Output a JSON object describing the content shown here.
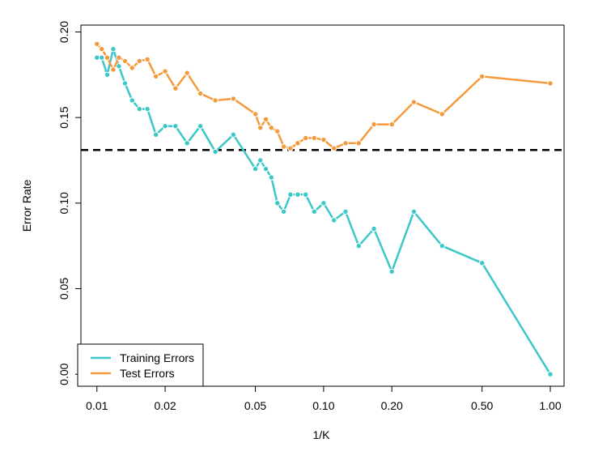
{
  "chart_data": {
    "type": "line",
    "xlabel": "1/K",
    "ylabel": "Error Rate",
    "x_scale": "log",
    "xlim": [
      0.0085,
      1.15
    ],
    "ylim": [
      -0.007,
      0.204
    ],
    "x_ticks": [
      0.01,
      0.02,
      0.05,
      0.1,
      0.2,
      0.5,
      1.0
    ],
    "x_tick_labels": [
      "0.01",
      "0.02",
      "0.05",
      "0.10",
      "0.20",
      "0.50",
      "1.00"
    ],
    "y_ticks": [
      0.0,
      0.05,
      0.1,
      0.15,
      0.2
    ],
    "y_tick_labels": [
      "0.00",
      "0.05",
      "0.10",
      "0.15",
      "0.20"
    ],
    "reference_line": {
      "y": 0.131,
      "style": "dashed",
      "color": "#000000"
    },
    "legend": {
      "position": "bottom-left"
    },
    "series": [
      {
        "name": "Training Errors",
        "color": "#3cc8c8",
        "points": [
          [
            0.01,
            0.185
          ],
          [
            0.0105,
            0.185
          ],
          [
            0.0111,
            0.175
          ],
          [
            0.0118,
            0.19
          ],
          [
            0.0125,
            0.18
          ],
          [
            0.0133,
            0.17
          ],
          [
            0.0143,
            0.16
          ],
          [
            0.0154,
            0.155
          ],
          [
            0.0167,
            0.155
          ],
          [
            0.0182,
            0.14
          ],
          [
            0.02,
            0.145
          ],
          [
            0.0222,
            0.145
          ],
          [
            0.025,
            0.135
          ],
          [
            0.0286,
            0.145
          ],
          [
            0.0333,
            0.13
          ],
          [
            0.04,
            0.14
          ],
          [
            0.05,
            0.12
          ],
          [
            0.0526,
            0.125
          ],
          [
            0.0556,
            0.12
          ],
          [
            0.0588,
            0.115
          ],
          [
            0.0625,
            0.1
          ],
          [
            0.0667,
            0.095
          ],
          [
            0.0714,
            0.105
          ],
          [
            0.0769,
            0.105
          ],
          [
            0.0833,
            0.105
          ],
          [
            0.0909,
            0.095
          ],
          [
            0.1,
            0.1
          ],
          [
            0.1111,
            0.09
          ],
          [
            0.125,
            0.095
          ],
          [
            0.1429,
            0.075
          ],
          [
            0.1667,
            0.085
          ],
          [
            0.2,
            0.06
          ],
          [
            0.25,
            0.095
          ],
          [
            0.3333,
            0.075
          ],
          [
            0.5,
            0.065
          ],
          [
            1.0,
            0.0
          ]
        ]
      },
      {
        "name": "Test Errors",
        "color": "#f59a3c",
        "points": [
          [
            0.01,
            0.193
          ],
          [
            0.0105,
            0.19
          ],
          [
            0.0111,
            0.185
          ],
          [
            0.0118,
            0.178
          ],
          [
            0.0125,
            0.185
          ],
          [
            0.0133,
            0.183
          ],
          [
            0.0143,
            0.179
          ],
          [
            0.0154,
            0.183
          ],
          [
            0.0167,
            0.184
          ],
          [
            0.0182,
            0.174
          ],
          [
            0.02,
            0.177
          ],
          [
            0.0222,
            0.167
          ],
          [
            0.025,
            0.176
          ],
          [
            0.0286,
            0.164
          ],
          [
            0.0333,
            0.16
          ],
          [
            0.04,
            0.161
          ],
          [
            0.05,
            0.152
          ],
          [
            0.0526,
            0.144
          ],
          [
            0.0556,
            0.149
          ],
          [
            0.0588,
            0.144
          ],
          [
            0.0625,
            0.142
          ],
          [
            0.0667,
            0.133
          ],
          [
            0.0714,
            0.132
          ],
          [
            0.0769,
            0.135
          ],
          [
            0.0833,
            0.138
          ],
          [
            0.0909,
            0.138
          ],
          [
            0.1,
            0.137
          ],
          [
            0.1111,
            0.132
          ],
          [
            0.125,
            0.135
          ],
          [
            0.1429,
            0.135
          ],
          [
            0.1667,
            0.146
          ],
          [
            0.2,
            0.146
          ],
          [
            0.25,
            0.159
          ],
          [
            0.3333,
            0.152
          ],
          [
            0.5,
            0.174
          ],
          [
            1.0,
            0.17
          ]
        ]
      }
    ]
  }
}
